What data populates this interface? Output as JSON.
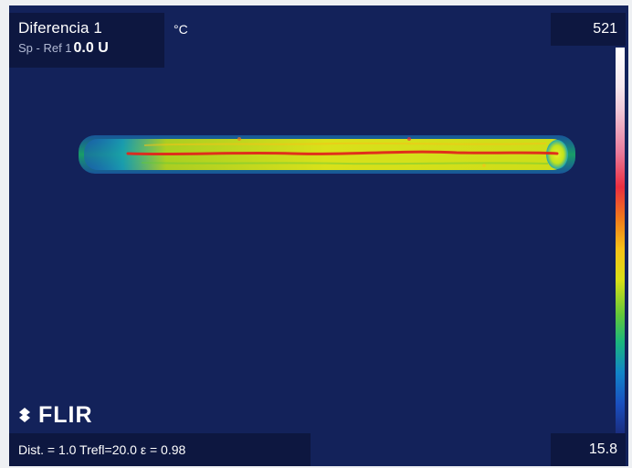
{
  "measurement": {
    "title": "Diferencia 1",
    "subtitle_label": "Sp - Ref 1",
    "subtitle_value": "0.0 U"
  },
  "display": {
    "temperature_unit": "°C",
    "max_value": "521",
    "min_value": "15.8",
    "brand": "FLIR"
  },
  "parameters": {
    "text": "Dist. = 1.0  Trefl=20.0  ε = 0.98"
  },
  "colors": {
    "background": "#13225a",
    "overlay": "#0d1740",
    "hot": "#e0261b",
    "warm": "#d8df17",
    "cool": "#1ab67d"
  }
}
